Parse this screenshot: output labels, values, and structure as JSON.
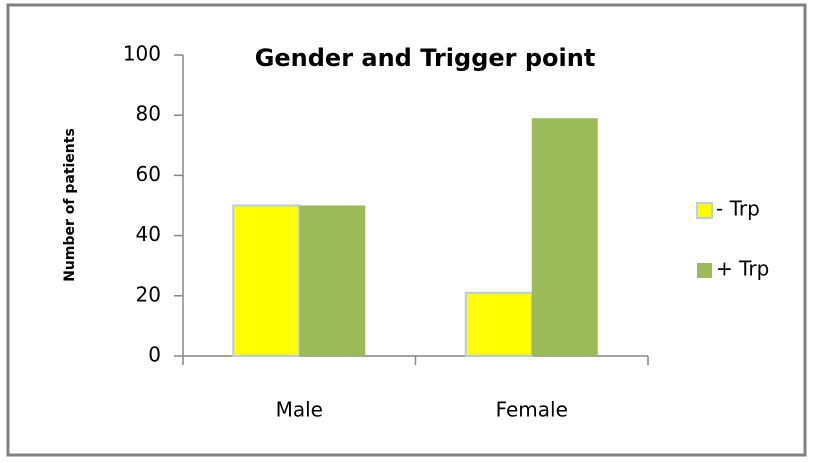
{
  "chart_data": {
    "type": "bar",
    "title": "Gender and Trigger point",
    "y_label": "Number of patients",
    "categories": [
      "Male",
      "Female"
    ],
    "series": [
      {
        "name": "- Trp",
        "color": "#ffff00",
        "values": [
          50,
          21
        ]
      },
      {
        "name": "+ Trp",
        "color": "#9bbb59",
        "values": [
          50,
          79
        ]
      }
    ],
    "ylim": [
      0,
      100
    ],
    "yticks": [
      0,
      20,
      40,
      60,
      80,
      100
    ],
    "legend": "right"
  }
}
